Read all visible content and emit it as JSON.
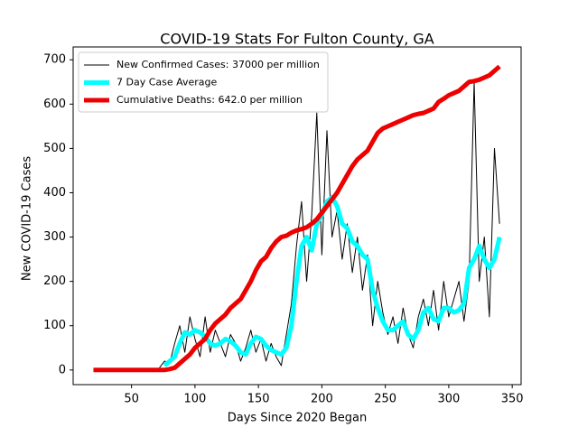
{
  "chart_data": {
    "type": "line",
    "title": "COVID-19 Stats For Fulton County, GA",
    "x_label": "Days Since 2020 Began",
    "y_label": "New COVID-19 Cases",
    "x": [
      20,
      24,
      28,
      32,
      36,
      40,
      44,
      48,
      52,
      56,
      60,
      64,
      68,
      72,
      76,
      80,
      84,
      88,
      92,
      96,
      100,
      104,
      108,
      112,
      116,
      120,
      124,
      128,
      132,
      136,
      140,
      144,
      148,
      152,
      156,
      160,
      164,
      168,
      172,
      176,
      180,
      184,
      188,
      192,
      196,
      200,
      204,
      208,
      212,
      216,
      220,
      224,
      228,
      232,
      236,
      240,
      244,
      248,
      252,
      256,
      260,
      264,
      268,
      272,
      276,
      280,
      284,
      288,
      292,
      296,
      300,
      304,
      308,
      312,
      316,
      320,
      324,
      328,
      332,
      336,
      340
    ],
    "series": [
      {
        "name": "New Confirmed Cases: 37000 per million",
        "color": "#000000",
        "width": 1,
        "values": [
          null,
          null,
          null,
          null,
          null,
          null,
          null,
          null,
          null,
          null,
          null,
          null,
          null,
          5,
          20,
          15,
          60,
          100,
          40,
          120,
          70,
          30,
          120,
          40,
          90,
          60,
          30,
          80,
          60,
          20,
          50,
          90,
          40,
          70,
          20,
          60,
          30,
          10,
          80,
          150,
          280,
          380,
          200,
          350,
          580,
          260,
          540,
          300,
          360,
          250,
          330,
          220,
          300,
          180,
          260,
          100,
          200,
          130,
          80,
          120,
          60,
          140,
          80,
          50,
          120,
          160,
          100,
          180,
          90,
          200,
          120,
          160,
          200,
          110,
          200,
          650,
          200,
          300,
          120,
          500,
          330
        ]
      },
      {
        "name": "7 Day Case Average",
        "color": "#00ffff",
        "width": 5,
        "values": [
          null,
          null,
          null,
          null,
          null,
          null,
          null,
          null,
          null,
          null,
          null,
          null,
          null,
          null,
          10,
          20,
          30,
          60,
          85,
          80,
          90,
          85,
          75,
          60,
          55,
          60,
          70,
          65,
          55,
          40,
          35,
          60,
          75,
          70,
          55,
          45,
          40,
          35,
          50,
          100,
          200,
          280,
          300,
          270,
          330,
          350,
          380,
          390,
          370,
          330,
          320,
          290,
          280,
          260,
          250,
          180,
          140,
          110,
          90,
          90,
          100,
          110,
          80,
          70,
          90,
          130,
          140,
          115,
          110,
          140,
          140,
          130,
          135,
          150,
          230,
          250,
          280,
          250,
          230,
          250,
          300
        ]
      },
      {
        "name": "Cumulative Deaths: 642.0 per million",
        "color": "#ee0000",
        "width": 5,
        "values": [
          0,
          0,
          0,
          0,
          0,
          0,
          0,
          0,
          0,
          0,
          0,
          0,
          0,
          0,
          0,
          2,
          5,
          15,
          25,
          35,
          50,
          60,
          70,
          90,
          105,
          115,
          125,
          140,
          150,
          160,
          180,
          200,
          225,
          245,
          255,
          275,
          290,
          300,
          303,
          310,
          315,
          318,
          322,
          330,
          340,
          355,
          370,
          385,
          400,
          420,
          440,
          460,
          475,
          485,
          495,
          515,
          535,
          545,
          550,
          555,
          560,
          565,
          570,
          575,
          578,
          580,
          585,
          590,
          605,
          612,
          620,
          625,
          630,
          640,
          650,
          652,
          655,
          660,
          665,
          675,
          685
        ]
      }
    ],
    "xlim": [
      4,
      357
    ],
    "xticks": [
      50,
      100,
      150,
      200,
      250,
      300,
      350
    ],
    "ylim": [
      -33,
      729
    ],
    "yticks": [
      0,
      100,
      200,
      300,
      400,
      500,
      600,
      700
    ],
    "legend": "upper left"
  }
}
